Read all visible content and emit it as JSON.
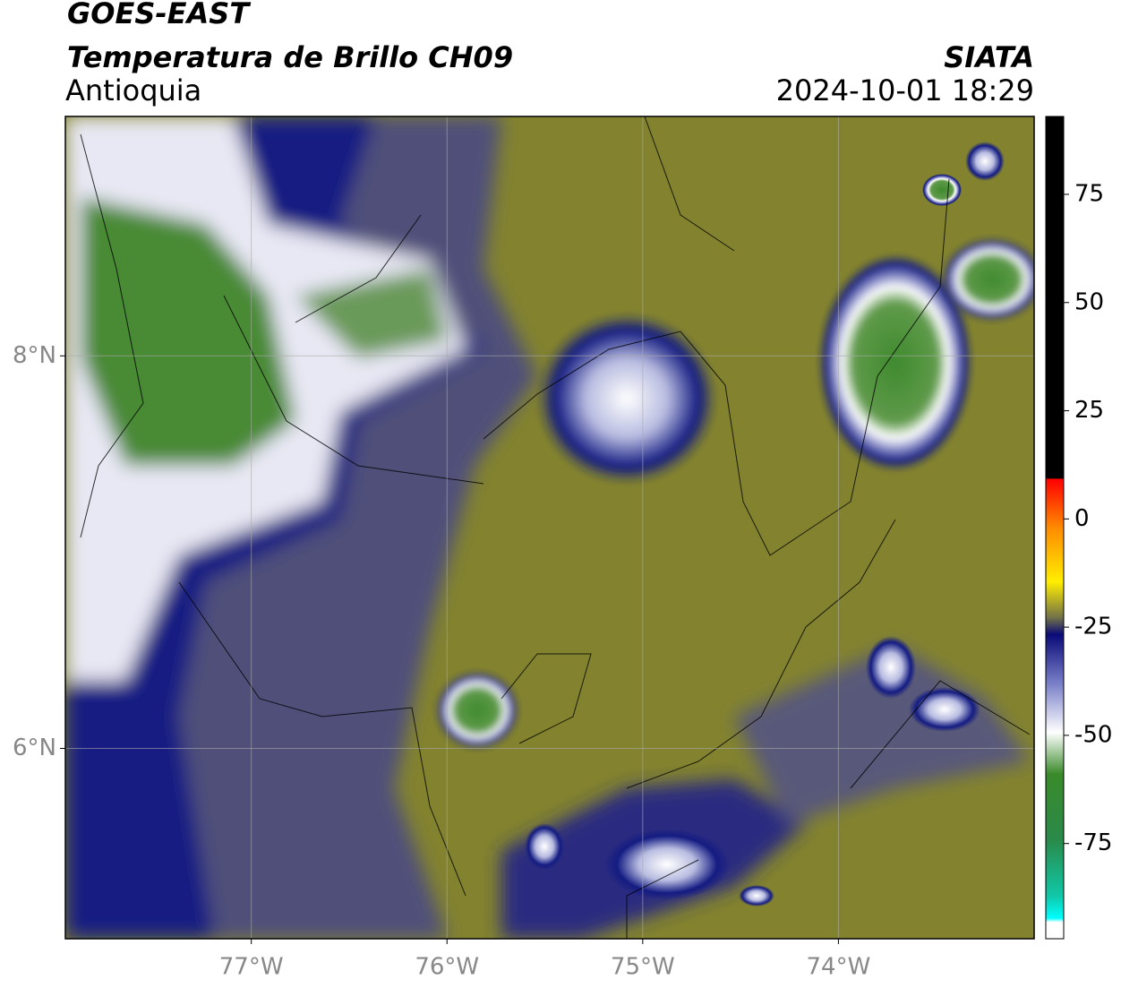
{
  "header": {
    "title": "GOES-EAST",
    "subtitle": "Temperatura de Brillo CH09",
    "region": "Antioquia",
    "source": "SIATA",
    "datetime": "2024-10-01 18:29"
  },
  "map": {
    "xlim": [
      -77.95,
      -73.0
    ],
    "ylim": [
      5.03,
      9.22
    ],
    "xticks": [
      {
        "value": -77,
        "label": "77°W"
      },
      {
        "value": -76,
        "label": "76°W"
      },
      {
        "value": -75,
        "label": "75°W"
      },
      {
        "value": -74,
        "label": "74°W"
      }
    ],
    "yticks": [
      {
        "value": 8,
        "label": "8°N"
      },
      {
        "value": 6,
        "label": "6°N"
      }
    ]
  },
  "colorbar": {
    "lim": [
      -97,
      93
    ],
    "ticks": [
      75,
      50,
      25,
      0,
      -25,
      -50,
      -75
    ]
  }
}
